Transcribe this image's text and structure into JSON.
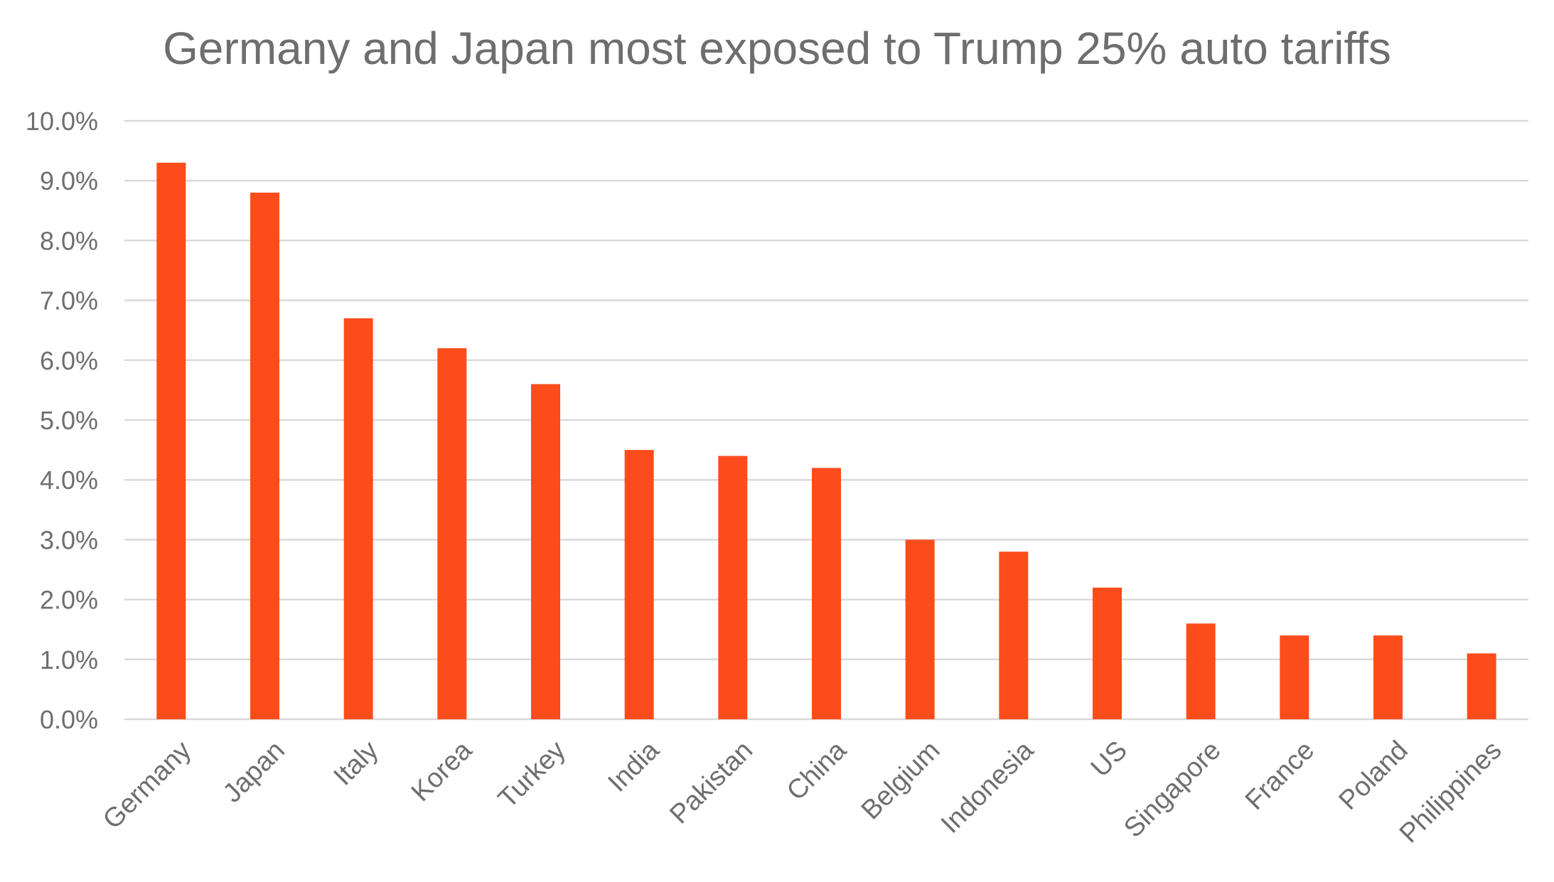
{
  "chart_data": {
    "type": "bar",
    "title": "Germany and Japan most exposed to Trump 25% auto tariffs",
    "xlabel": "",
    "ylabel": "",
    "categories": [
      "Germany",
      "Japan",
      "Italy",
      "Korea",
      "Turkey",
      "India",
      "Pakistan",
      "China",
      "Belgium",
      "Indonesia",
      "US",
      "Singapore",
      "France",
      "Poland",
      "Philippines"
    ],
    "values": [
      9.3,
      8.8,
      6.7,
      6.2,
      5.6,
      4.5,
      4.4,
      4.2,
      3.0,
      2.8,
      2.2,
      1.6,
      1.4,
      1.4,
      1.1
    ],
    "ylim": [
      0,
      10
    ],
    "yticks": [
      0,
      1,
      2,
      3,
      4,
      5,
      6,
      7,
      8,
      9,
      10
    ],
    "ytick_labels": [
      "0.0%",
      "1.0%",
      "2.0%",
      "3.0%",
      "4.0%",
      "5.0%",
      "6.0%",
      "7.0%",
      "8.0%",
      "9.0%",
      "10.0%"
    ],
    "grid": true,
    "legend": "none",
    "bar_color": "#fc4c1b",
    "grid_color": "#d9d9d9",
    "text_color": "#6e6e6e"
  }
}
